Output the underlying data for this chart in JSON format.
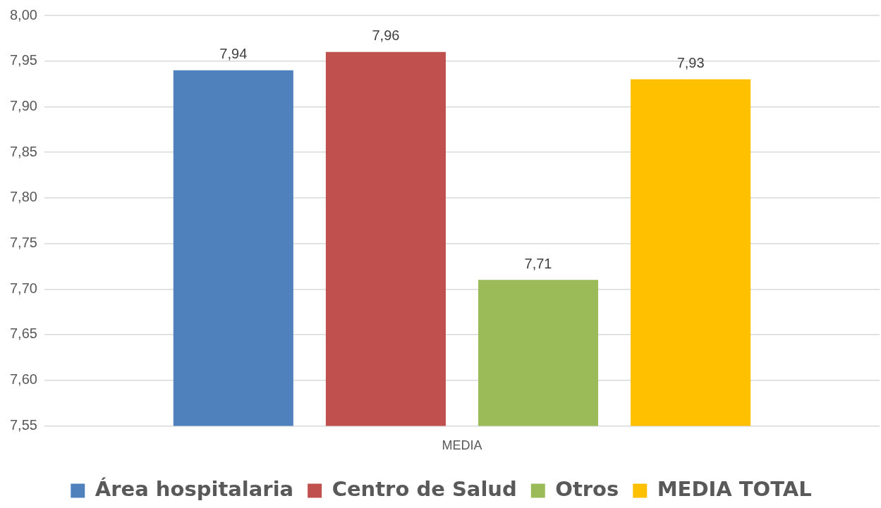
{
  "chart_data": {
    "type": "bar",
    "categories": [
      "MEDIA"
    ],
    "series": [
      {
        "name": "Área hospitalaria",
        "color": "#4f81bd",
        "values": [
          7.94
        ],
        "value_labels": [
          "7,94"
        ]
      },
      {
        "name": "Centro de Salud",
        "color": "#c0504d",
        "values": [
          7.96
        ],
        "value_labels": [
          "7,96"
        ]
      },
      {
        "name": "Otros",
        "color": "#9bbb59",
        "values": [
          7.71
        ],
        "value_labels": [
          "7,71"
        ]
      },
      {
        "name": "MEDIA TOTAL",
        "color": "#ffc000",
        "values": [
          7.93
        ],
        "value_labels": [
          "7,93"
        ]
      }
    ],
    "ylim": [
      7.55,
      8.0
    ],
    "yticks": [
      {
        "value": 7.55,
        "label": "7,55"
      },
      {
        "value": 7.6,
        "label": "7,60"
      },
      {
        "value": 7.65,
        "label": "7,65"
      },
      {
        "value": 7.7,
        "label": "7,70"
      },
      {
        "value": 7.75,
        "label": "7,75"
      },
      {
        "value": 7.8,
        "label": "7,80"
      },
      {
        "value": 7.85,
        "label": "7,85"
      },
      {
        "value": 7.9,
        "label": "7,90"
      },
      {
        "value": 7.95,
        "label": "7,95"
      },
      {
        "value": 8.0,
        "label": "8,00"
      }
    ],
    "grid": "y",
    "legend": "bottom"
  }
}
